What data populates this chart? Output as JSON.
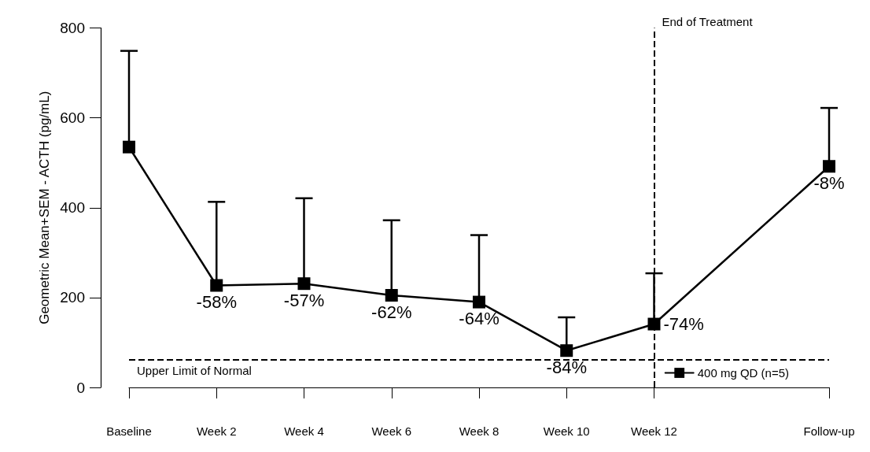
{
  "chart_data": {
    "type": "line",
    "ylabel": "Geometric Mean+SEM - ACTH (pg/mL)",
    "categories": [
      "Baseline",
      "Week 2",
      "Week 4",
      "Week 6",
      "Week 8",
      "Week 10",
      "Week 12",
      null,
      "Follow-up"
    ],
    "ylim": [
      0,
      800
    ],
    "yticks": [
      0,
      200,
      400,
      600,
      800
    ],
    "series": [
      {
        "name": "400 mg QD (n=5)",
        "color": "#000000",
        "values": [
          535,
          227,
          231,
          205,
          190,
          82,
          141,
          null,
          492
        ],
        "errors": [
          [
            535,
            749
          ],
          [
            227,
            413
          ],
          [
            231,
            421
          ],
          [
            205,
            372
          ],
          [
            190,
            339
          ],
          [
            82,
            156
          ],
          [
            141,
            254
          ],
          null,
          [
            492,
            622
          ]
        ]
      }
    ],
    "annotations": [
      {
        "text": "-58%",
        "x": "Week 2",
        "y": 227
      },
      {
        "text": "-57%",
        "x": "Week 4",
        "y": 231
      },
      {
        "text": "-62%",
        "x": "Week 6",
        "y": 205
      },
      {
        "text": "-64%",
        "x": "Week 8",
        "y": 190
      },
      {
        "text": "-84%",
        "x": "Week 10",
        "y": 82
      },
      {
        "text": "-74%",
        "x": "Week 12",
        "y": 141
      },
      {
        "text": "-8%",
        "x": "Follow-up",
        "y": 492
      }
    ],
    "ref_lines": [
      {
        "axis": "y",
        "value": 62,
        "label": "Upper Limit of Normal",
        "line_style": "dashed"
      },
      {
        "axis": "x",
        "value": "Week 12",
        "label": "End of Treatment",
        "line_style": "dashed"
      }
    ],
    "marker": "square",
    "line_style": "solid",
    "grid": false,
    "legend": "bottom right"
  }
}
